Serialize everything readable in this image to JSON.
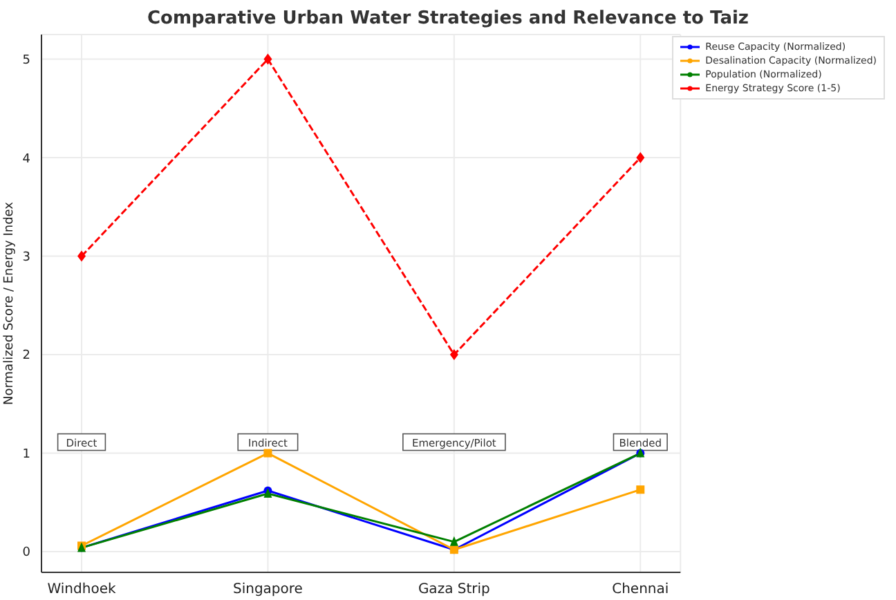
{
  "chart_data": {
    "type": "line",
    "title": "Comparative Urban Water Strategies and Relevance to Taiz",
    "ylabel": "Normalized Score / Energy Index",
    "categories": [
      "Windhoek",
      "Singapore",
      "Gaza Strip",
      "Chennai"
    ],
    "series": [
      {
        "name": "Reuse Capacity (Normalized)",
        "color": "#0000ff",
        "values": [
          0.04,
          0.62,
          0.02,
          1.0
        ],
        "marker": "circle"
      },
      {
        "name": "Desalination Capacity (Normalized)",
        "color": "#ffa500",
        "values": [
          0.06,
          1.0,
          0.02,
          0.63
        ],
        "marker": "square"
      },
      {
        "name": "Population (Normalized)",
        "color": "#008000",
        "values": [
          0.04,
          0.59,
          0.1,
          1.0
        ],
        "marker": "triangle"
      },
      {
        "name": "Energy Strategy Score (1-5)",
        "color": "#ff0000",
        "values": [
          3,
          5,
          2,
          4
        ],
        "marker": "diamond",
        "line_style": "dashed"
      }
    ],
    "ylim": [
      -0.21,
      5.25
    ],
    "yticks": [
      0,
      1,
      2,
      3,
      4,
      5
    ],
    "annotations": [
      "Direct",
      "Indirect",
      "Emergency/Pilot",
      "Blended"
    ],
    "grid": true,
    "legend": "top right"
  }
}
